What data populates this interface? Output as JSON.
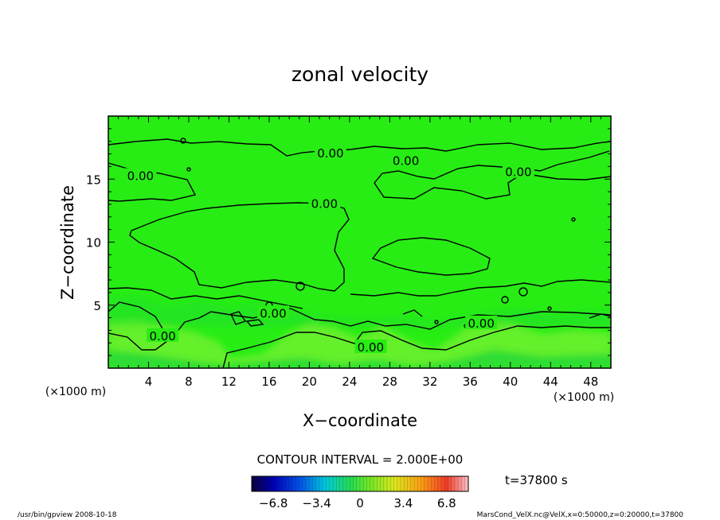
{
  "chart_data": {
    "type": "heatmap",
    "title": "zonal velocity",
    "xlabel": "X−coordinate",
    "ylabel": "Z−coordinate",
    "x_unit": "(×1000 m)",
    "y_unit": "(×1000 m)",
    "xlim": [
      0,
      50
    ],
    "ylim": [
      0,
      20
    ],
    "x_ticks": [
      4,
      8,
      12,
      16,
      20,
      24,
      28,
      32,
      36,
      40,
      44,
      48
    ],
    "y_ticks": [
      5,
      10,
      15
    ],
    "contour_interval": "CONTOUR INTERVAL = 2.000E+00",
    "contour_labels": [
      {
        "text": "0.00",
        "x": 21.5,
        "y": 13.1
      },
      {
        "text": "0.00",
        "x": 22.1,
        "y": 17.1
      },
      {
        "text": "0.00",
        "x": 3.2,
        "y": 15.3
      },
      {
        "text": "0.00",
        "x": 29.6,
        "y": 16.5
      },
      {
        "text": "0.00",
        "x": 40.8,
        "y": 15.6
      },
      {
        "text": "0.00",
        "x": 16.4,
        "y": 4.4
      },
      {
        "text": "0.00",
        "x": 5.4,
        "y": 2.6
      },
      {
        "text": "0.00",
        "x": 26.1,
        "y": 1.7
      },
      {
        "text": "0.00",
        "x": 37.1,
        "y": 3.6
      }
    ],
    "colorbar": {
      "ticks": [
        "−6.8",
        "−3.4",
        "0",
        "3.4",
        "6.8"
      ],
      "min": -8.5,
      "max": 8.5
    },
    "time_label": "t=37800 s",
    "colors": {
      "field": "#27ed14",
      "field_strong": "#6ff02e",
      "field_weak": "#23d83a"
    }
  },
  "footer": {
    "left": "/usr/bin/gpview   2008-10-18",
    "right": "MarsCond_VelX.nc@VelX,x=0:50000,z=0:20000,t=37800"
  }
}
